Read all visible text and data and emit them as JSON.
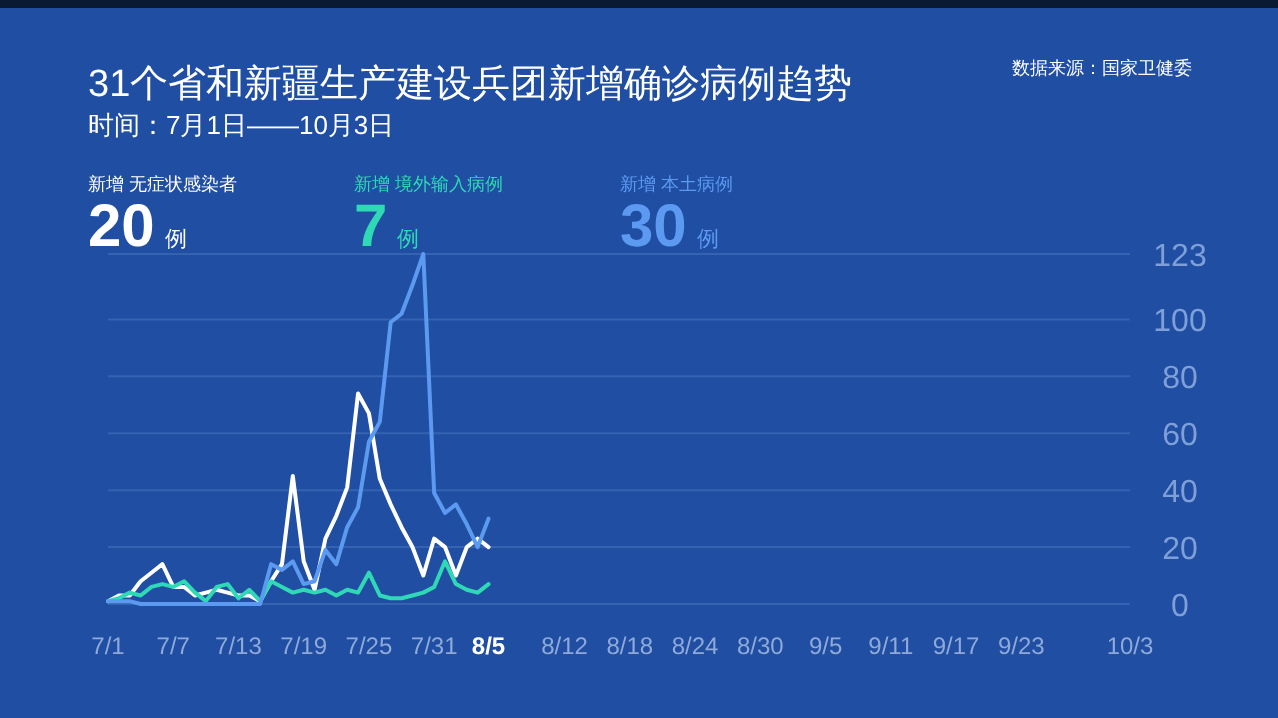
{
  "chart_data": {
    "type": "line",
    "title": "31个省和新疆生产建设兵团新增确诊病例趋势",
    "subtitle": "时间：7月1日——10月3日",
    "x": [
      "--07-01",
      "--07-02",
      "--07-03",
      "--07-04",
      "--07-05",
      "--07-06",
      "--07-07",
      "--07-08",
      "--07-09",
      "--07-10",
      "--07-11",
      "--07-12",
      "--07-13",
      "--07-14",
      "--07-15",
      "--07-16",
      "--07-17",
      "--07-18",
      "--07-19",
      "--07-20",
      "--07-21",
      "--07-22",
      "--07-23",
      "--07-24",
      "--07-25",
      "--07-26",
      "--07-27",
      "--07-28",
      "--07-29",
      "--07-30",
      "--07-31",
      "--08-01",
      "--08-02",
      "--08-03",
      "--08-04",
      "--08-05"
    ],
    "series": [
      {
        "name": "新增 无症状感染者",
        "color": "#ffffff",
        "values": [
          1,
          3,
          3,
          8,
          11,
          14,
          6,
          6,
          3,
          4,
          5,
          4,
          3,
          3,
          1,
          8,
          14,
          45,
          15,
          5,
          23,
          31,
          41,
          74,
          67,
          44,
          35,
          27,
          20,
          10,
          23,
          20,
          10,
          20,
          23,
          20
        ]
      },
      {
        "name": "新增 境外输入病例",
        "color": "#2fd9b5",
        "values": [
          1,
          2,
          4,
          3,
          6,
          7,
          6,
          8,
          4,
          1,
          6,
          7,
          2,
          5,
          1,
          8,
          6,
          4,
          5,
          4,
          5,
          3,
          5,
          4,
          11,
          3,
          2,
          2,
          3,
          4,
          6,
          15,
          7,
          5,
          4,
          7
        ]
      },
      {
        "name": "新增 本土病例",
        "color": "#5b9af0",
        "values": [
          1,
          1,
          1,
          0,
          0,
          0,
          0,
          0,
          0,
          0,
          0,
          0,
          0,
          0,
          0,
          14,
          12,
          15,
          7,
          8,
          19,
          14,
          27,
          34,
          57,
          64,
          99,
          102,
          112,
          123,
          39,
          32,
          35,
          28,
          20,
          30
        ]
      }
    ],
    "annotations": [
      "20 例",
      "7 例",
      "30 例",
      "数据来源：国家卫健委"
    ],
    "xlim": [
      "--07-01",
      "--10-03"
    ],
    "xticks": [
      {
        "value": "--07-01",
        "label": "7/1"
      },
      {
        "value": "--07-07",
        "label": "7/7"
      },
      {
        "value": "--07-13",
        "label": "7/13"
      },
      {
        "value": "--07-19",
        "label": "7/19"
      },
      {
        "value": "--07-25",
        "label": "7/25"
      },
      {
        "value": "--07-31",
        "label": "7/31"
      },
      {
        "value": "--08-05",
        "label": "8/5"
      },
      {
        "value": "--08-12",
        "label": "8/12"
      },
      {
        "value": "--08-18",
        "label": "8/18"
      },
      {
        "value": "--08-24",
        "label": "8/24"
      },
      {
        "value": "--08-30",
        "label": "8/30"
      },
      {
        "value": "--09-05",
        "label": "9/5"
      },
      {
        "value": "--09-11",
        "label": "9/11"
      },
      {
        "value": "--09-17",
        "label": "9/17"
      },
      {
        "value": "--09-23",
        "label": "9/23"
      },
      {
        "value": "--10-03",
        "label": "10/3"
      }
    ],
    "ylim": [
      0,
      123
    ],
    "yticks": [
      0,
      20,
      40,
      60,
      80,
      100,
      123
    ],
    "grid": "y",
    "legend": "top left",
    "marker": "none",
    "line_style": "solid"
  }
}
